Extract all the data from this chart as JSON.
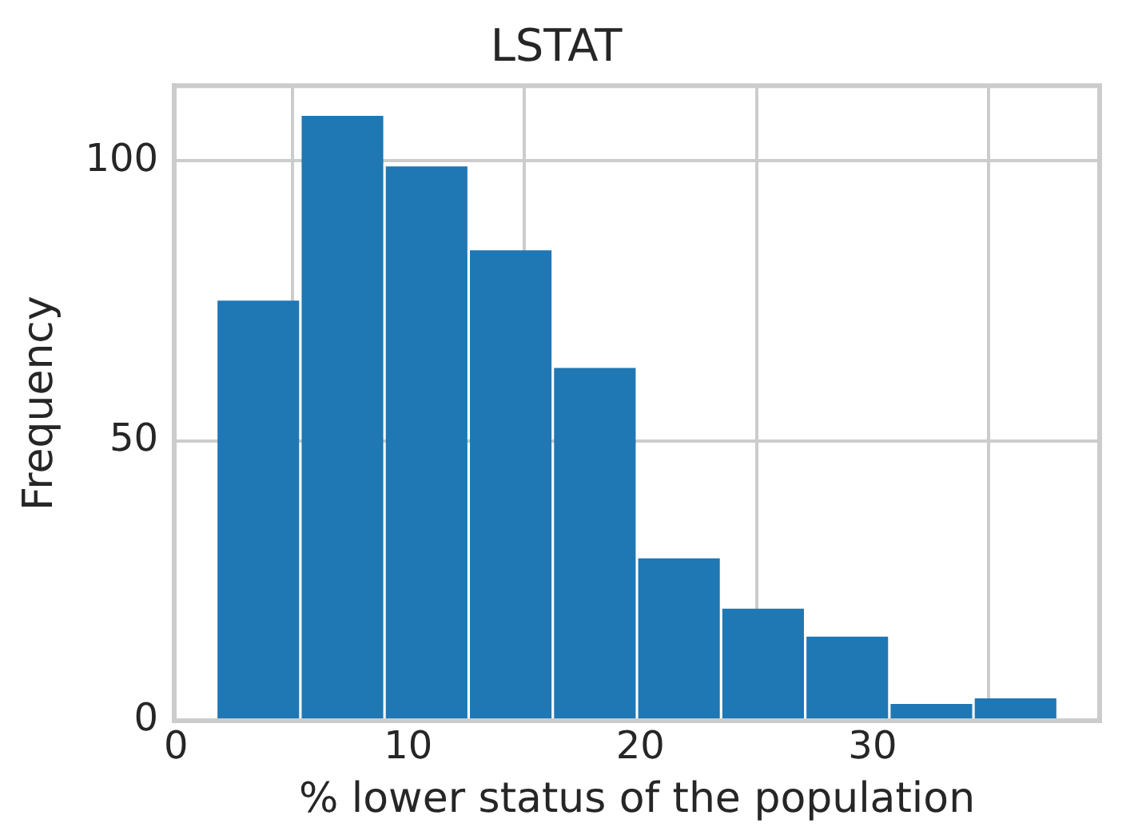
{
  "chart_data": {
    "type": "histogram",
    "title": "LSTAT",
    "xlabel": "% lower status of the population",
    "ylabel": "Frequency",
    "bins": [
      1.73,
      5.354,
      8.978,
      12.602,
      16.226,
      19.85,
      23.474,
      27.098,
      30.722,
      34.346,
      37.97
    ],
    "values": [
      75,
      108,
      99,
      84,
      63,
      29,
      20,
      15,
      3,
      4
    ],
    "color": "#1f77b4",
    "xlim": [
      -0.08,
      39.78
    ],
    "xticks": [
      0,
      10,
      20,
      30
    ],
    "ylim": [
      0,
      113.4
    ],
    "yticks": [
      0,
      50,
      100
    ],
    "grid": true
  }
}
